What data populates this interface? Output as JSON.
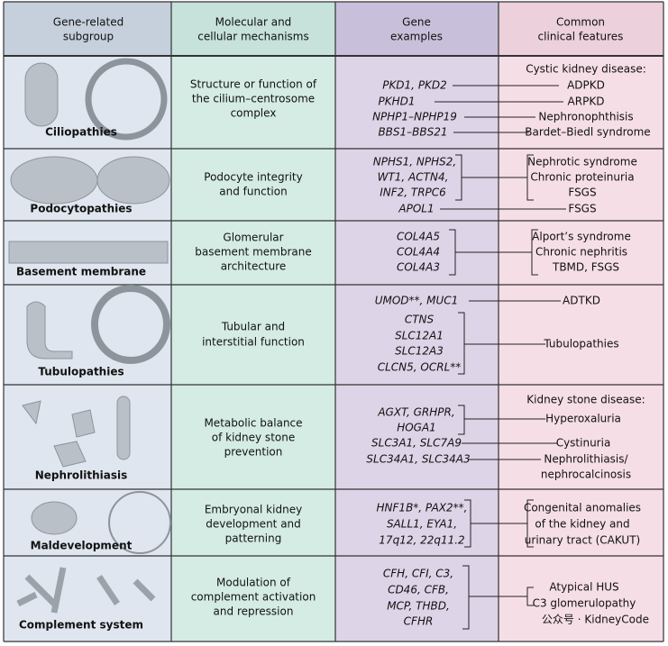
{
  "header": [
    [
      "Gene-related",
      "subgroup"
    ],
    [
      "Molecular and",
      "cellular mechanisms"
    ],
    [
      "Gene",
      "examples"
    ],
    [
      "Common",
      "clinical features"
    ]
  ],
  "rows": [
    {
      "subgroup": "Ciliopathies",
      "mechanism": [
        "Structure or function of",
        "the cilium–centrosome",
        "complex"
      ],
      "genes": [
        "PKD1, PKD2",
        "PKHD1",
        "NPHP1–NPHP19",
        "BBS1–BBS21"
      ],
      "features": [
        "Cystic kidney disease:",
        "ADPKD",
        "ARPKD",
        "Nephronophthisis",
        "Bardet–Biedl syndrome"
      ]
    },
    {
      "subgroup": "Podocytopathies",
      "mechanism": [
        "Podocyte integrity",
        "and function"
      ],
      "genes": [
        "NPHS1, NPHS2,",
        "WT1, ACTN4,",
        "INF2, TRPC6",
        "APOL1"
      ],
      "features": [
        "Nephrotic syndrome",
        "Chronic proteinuria",
        "FSGS",
        "FSGS"
      ]
    },
    {
      "subgroup": "Basement membrane",
      "mechanism": [
        "Glomerular",
        "basement membrane",
        "architecture"
      ],
      "genes": [
        "COL4A5",
        "COL4A4",
        "COL4A3"
      ],
      "features": [
        "Alport’s syndrome",
        "Chronic nephritis",
        "TBMD, FSGS"
      ]
    },
    {
      "subgroup": "Tubulopathies",
      "mechanism": [
        "Tubular and",
        "interstitial function"
      ],
      "genes": [
        "UMOD**, MUC1",
        "CTNS",
        "SLC12A1",
        "SLC12A3",
        "CLCN5, OCRL**"
      ],
      "features": [
        "ADTKD",
        "Tubulopathies"
      ]
    },
    {
      "subgroup": "Nephrolithiasis",
      "mechanism": [
        "Metabolic balance",
        "of kidney stone",
        "prevention"
      ],
      "genes": [
        "AGXT, GRHPR,",
        "HOGA1",
        "SLC3A1, SLC7A9",
        "SLC34A1, SLC34A3"
      ],
      "features": [
        "Kidney stone disease:",
        "Hyperoxaluria",
        "Cystinuria",
        "Nephrolithiasis/",
        "nephrocalcinosis"
      ]
    },
    {
      "subgroup": "Maldevelopment",
      "mechanism": [
        "Embryonal kidney",
        "development and",
        "patterning"
      ],
      "genes": [
        "HNF1B*, PAX2**,",
        "SALL1, EYA1,",
        "17q12, 22q11.2"
      ],
      "features": [
        "Congenital anomalies",
        "of the kidney and",
        "urinary tract (CAKUT)"
      ]
    },
    {
      "subgroup": "Complement system",
      "mechanism": [
        "Modulation of",
        "complement activation",
        "and repression"
      ],
      "genes": [
        "CFH, CFI, C3,",
        "CD46, CFB,",
        "MCP, THBD,",
        "CFHR"
      ],
      "features": [
        "Atypical HUS",
        "C3 glomerulopathy"
      ]
    }
  ],
  "watermark": "公众号 · KidneyCode"
}
